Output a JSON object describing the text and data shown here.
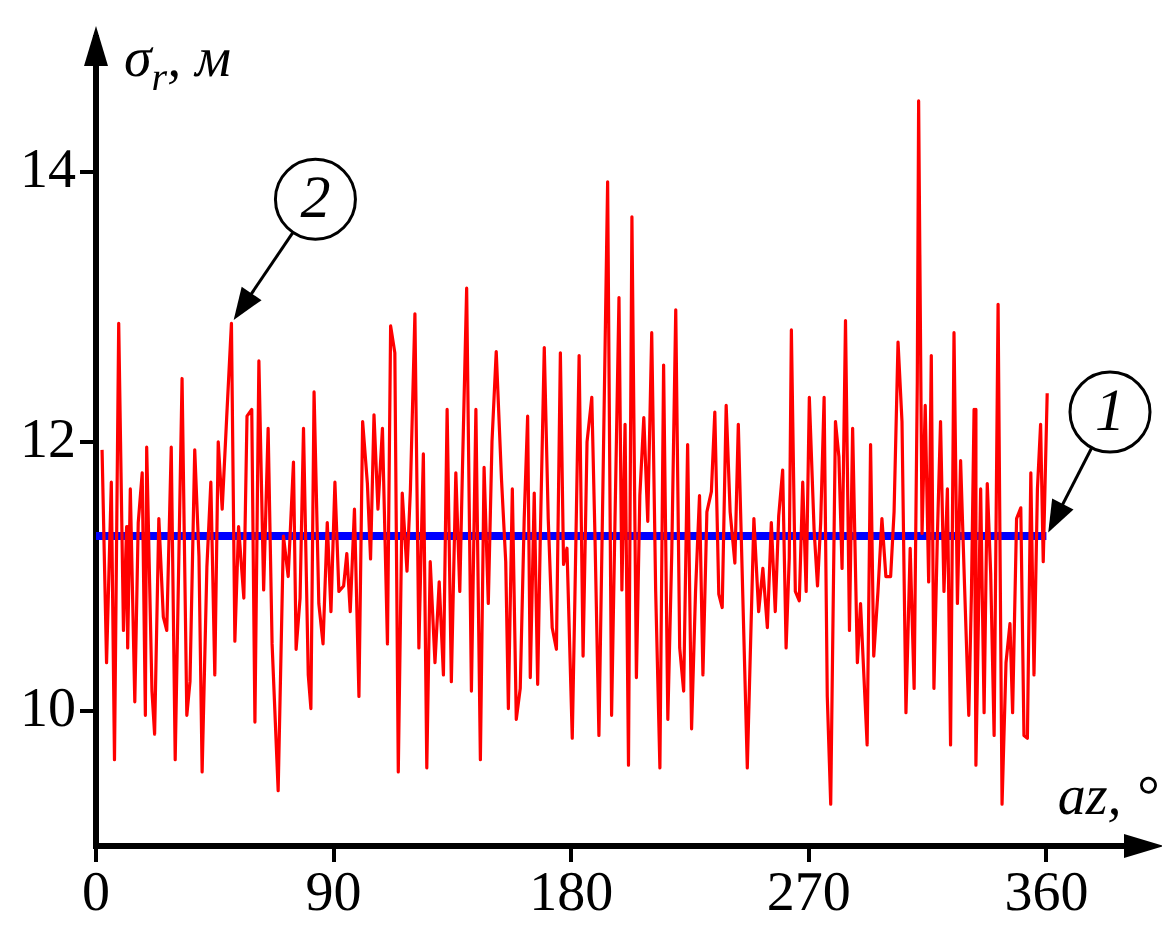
{
  "chart_data": {
    "type": "line",
    "xlabel": "az, °",
    "ylabel": "σ$_{r}$, м",
    "xlim": [
      0,
      400
    ],
    "xticks": [
      0,
      90,
      180,
      270,
      360
    ],
    "ylim": [
      9,
      15
    ],
    "yticks": [
      10,
      12,
      14
    ],
    "legend": false,
    "marker": "none",
    "line_style": "solid",
    "series": [
      {
        "color": "#ff0000",
        "x": [
          2.3,
          4,
          5.8,
          7,
          8.6,
          10.4,
          11.6,
          12,
          13,
          14.7,
          16,
          17.5,
          18.7,
          19.2,
          21.2,
          22.2,
          23.8,
          25.5,
          26.8,
          28.5,
          30,
          32.6,
          34.4,
          35.6,
          37.4,
          39,
          40.2,
          42,
          43.5,
          45,
          46.3,
          47.8,
          49.5,
          51.3,
          52.6,
          54,
          56,
          57.2,
          59,
          60.2,
          61.7,
          63.5,
          65.2,
          66.7,
          69,
          71,
          72.8,
          74.8,
          75.8,
          77.3,
          78.6,
          80.4,
          81.4,
          82.6,
          84.4,
          86,
          87.6,
          89,
          90.5,
          92,
          93.8,
          95,
          96.3,
          97.9,
          99.6,
          101,
          102.8,
          104,
          105.3,
          106.8,
          108.5,
          110.4,
          111.6,
          113.2,
          114.5,
          116,
          117.8,
          119.1,
          120.8,
          122.3,
          124,
          125.3,
          126.6,
          128.4,
          130,
          131.6,
          133,
          134.6,
          136.3,
          137.8,
          138.8,
          140.4,
          142.2,
          143.9,
          145.6,
          147,
          148.6,
          150,
          151.6,
          153.6,
          155.2,
          156.2,
          157.7,
          159.2,
          160.7,
          162.2,
          163.5,
          164.5,
          166,
          167.3,
          168.3,
          169.8,
          171.3,
          172.8,
          174.4,
          175.9,
          177.1,
          178.4,
          180.4,
          181.4,
          183,
          184.5,
          186,
          187.8,
          189,
          190.5,
          192,
          193.8,
          195.3,
          196.6,
          198.1,
          199.2,
          200.4,
          201.7,
          203,
          204.7,
          206,
          207.5,
          209,
          210.5,
          212,
          213.6,
          215,
          216.6,
          218.1,
          219.6,
          221.1,
          222.6,
          224.1,
          225.6,
          227.1,
          228.6,
          229.9,
          231.4,
          233.1,
          234.4,
          235.9,
          237.2,
          238.7,
          240.2,
          242,
          243.3,
          246.7,
          249.2,
          251,
          252.6,
          254.3,
          255.8,
          257.3,
          258.6,
          260.1,
          261.4,
          262.6,
          263.4,
          264.9,
          266.4,
          267.7,
          269,
          270.2,
          272,
          273.3,
          274.5,
          275.8,
          277,
          278.3,
          280.1,
          281.4,
          282.6,
          283.9,
          285.4,
          286.6,
          288.4,
          289.6,
          290.9,
          292.1,
          293.4,
          294.6,
          296.2,
          297.7,
          299.2,
          301,
          302.3,
          303.8,
          305.3,
          306.8,
          308.4,
          309.9,
          311.1,
          311.6,
          312.9,
          314.1,
          315.4,
          316.4,
          317.4,
          318.7,
          319.9,
          321.2,
          322.5,
          323.7,
          325,
          326.3,
          327.5,
          329,
          330.6,
          331.6,
          332.6,
          333.3,
          335.1,
          336.4,
          337.6,
          338.9,
          340.2,
          341.7,
          343.2,
          344.7,
          346.2,
          347.2,
          348.7,
          350.3,
          351.5,
          352.8,
          354.1,
          355.3,
          356.6,
          357.8,
          358.8,
          360.3
        ],
        "values": [
          11.94,
          10.36,
          11.7,
          9.64,
          12.88,
          10.6,
          11.37,
          10.47,
          11.65,
          10.07,
          11.4,
          11.77,
          9.97,
          11.96,
          10.15,
          9.83,
          11.43,
          10.7,
          10.6,
          11.96,
          9.64,
          12.47,
          9.97,
          10.22,
          11.94,
          11.15,
          9.55,
          11.07,
          11.7,
          10.27,
          12.0,
          11.5,
          12.18,
          12.88,
          10.52,
          11.37,
          10.84,
          12.19,
          12.24,
          9.92,
          12.6,
          10.9,
          12.1,
          10.5,
          9.41,
          11.3,
          11.0,
          11.85,
          10.46,
          10.84,
          12.1,
          10.27,
          10.02,
          12.37,
          10.8,
          10.5,
          11.4,
          10.74,
          11.7,
          10.89,
          10.93,
          11.17,
          10.74,
          11.5,
          10.11,
          12.15,
          11.69,
          11.13,
          12.2,
          11.5,
          12.1,
          10.5,
          12.86,
          12.66,
          9.55,
          11.62,
          11.04,
          11.65,
          12.95,
          10.47,
          11.91,
          9.58,
          11.11,
          10.36,
          10.96,
          10.27,
          12.24,
          10.22,
          11.77,
          10.89,
          11.79,
          13.14,
          10.15,
          12.24,
          9.64,
          11.81,
          10.8,
          12.0,
          12.67,
          11.72,
          11.11,
          10.02,
          11.65,
          9.94,
          10.17,
          11.43,
          12.19,
          10.25,
          11.62,
          10.2,
          11.3,
          12.7,
          11.43,
          10.62,
          10.46,
          12.66,
          11.09,
          11.21,
          9.8,
          10.84,
          12.64,
          10.41,
          12.0,
          12.33,
          11.3,
          9.82,
          11.65,
          13.93,
          9.97,
          11.43,
          13.07,
          10.9,
          12.13,
          9.6,
          13.67,
          10.25,
          11.6,
          12.18,
          11.41,
          12.81,
          10.89,
          9.58,
          12.57,
          9.94,
          11.18,
          12.98,
          10.47,
          10.15,
          11.98,
          9.87,
          10.89,
          11.6,
          10.27,
          11.48,
          11.63,
          12.22,
          10.87,
          10.77,
          12.27,
          11.48,
          11.1,
          12.13,
          9.58,
          11.43,
          10.74,
          11.06,
          10.62,
          11.4,
          10.74,
          11.45,
          11.79,
          10.47,
          11.14,
          12.83,
          10.89,
          10.82,
          11.7,
          10.89,
          12.33,
          11.35,
          10.93,
          11.4,
          12.33,
          10.11,
          9.31,
          12.15,
          11.89,
          11.06,
          12.9,
          10.6,
          12.1,
          10.36,
          10.8,
          10.25,
          9.75,
          11.98,
          10.41,
          10.89,
          11.43,
          11.0,
          11.0,
          11.48,
          12.74,
          12.15,
          9.99,
          11.21,
          10.17,
          12.45,
          14.53,
          11.32,
          12.27,
          10.96,
          12.64,
          10.17,
          11.3,
          12.15,
          10.89,
          11.65,
          9.75,
          12.81,
          10.8,
          11.86,
          10.93,
          9.97,
          10.87,
          12.24,
          9.6,
          11.65,
          9.99,
          11.69,
          11.02,
          9.82,
          13.02,
          9.31,
          10.36,
          10.65,
          9.99,
          11.43,
          11.51,
          9.82,
          9.8,
          11.77,
          10.27,
          11.65,
          12.13,
          11.11,
          12.36
        ]
      },
      {
        "color": "#0000ff",
        "x": [
          0,
          360
        ],
        "values": [
          11.3,
          11.3
        ]
      }
    ],
    "annotations": [
      {
        "text": "1",
        "x": 360,
        "y": 11.3
      },
      {
        "text": "2",
        "x": 51.3,
        "y": 12.88
      }
    ]
  }
}
